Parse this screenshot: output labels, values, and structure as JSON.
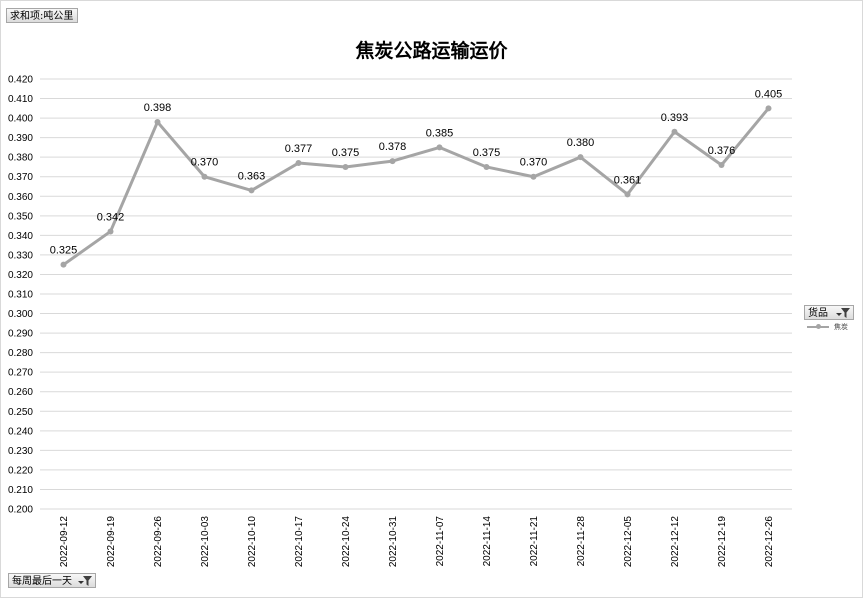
{
  "pivot_buttons": {
    "value_field": "求和项:吨公里",
    "axis_field": "每周最后一天",
    "legend_field": "货品"
  },
  "icons": {
    "filter": "filter-funnel-icon",
    "dropdown": "dropdown-arrow-icon"
  },
  "colors": {
    "series": "#a5a5a5",
    "grid": "#d9d9d9",
    "text": "#000000"
  },
  "chart_data": {
    "type": "line",
    "title": "焦炭公路运输运价",
    "x": [
      "2022-09-12",
      "2022-09-19",
      "2022-09-26",
      "2022-10-03",
      "2022-10-10",
      "2022-10-17",
      "2022-10-24",
      "2022-10-31",
      "2022-11-07",
      "2022-11-14",
      "2022-11-21",
      "2022-11-28",
      "2022-12-05",
      "2022-12-12",
      "2022-12-19",
      "2022-12-26"
    ],
    "series": [
      {
        "name": "焦炭",
        "values": [
          0.325,
          0.342,
          0.398,
          0.37,
          0.363,
          0.377,
          0.375,
          0.378,
          0.385,
          0.375,
          0.37,
          0.38,
          0.361,
          0.393,
          0.376,
          0.405
        ],
        "labels": [
          "0.325",
          "0.342",
          "0.398",
          "0.370",
          "0.363",
          "0.377",
          "0.375",
          "0.378",
          "0.385",
          "0.375",
          "0.370",
          "0.380",
          "0.361",
          "0.393",
          "0.376",
          "0.405"
        ]
      }
    ],
    "ylim": [
      0.2,
      0.42
    ],
    "ytick_step": 0.01,
    "ytick_labels": [
      "0.200",
      "0.210",
      "0.220",
      "0.230",
      "0.240",
      "0.250",
      "0.260",
      "0.270",
      "0.280",
      "0.290",
      "0.300",
      "0.310",
      "0.320",
      "0.330",
      "0.340",
      "0.350",
      "0.360",
      "0.370",
      "0.380",
      "0.390",
      "0.400",
      "0.410",
      "0.420"
    ],
    "grid": true,
    "legend_position": "right",
    "data_labels": true
  }
}
